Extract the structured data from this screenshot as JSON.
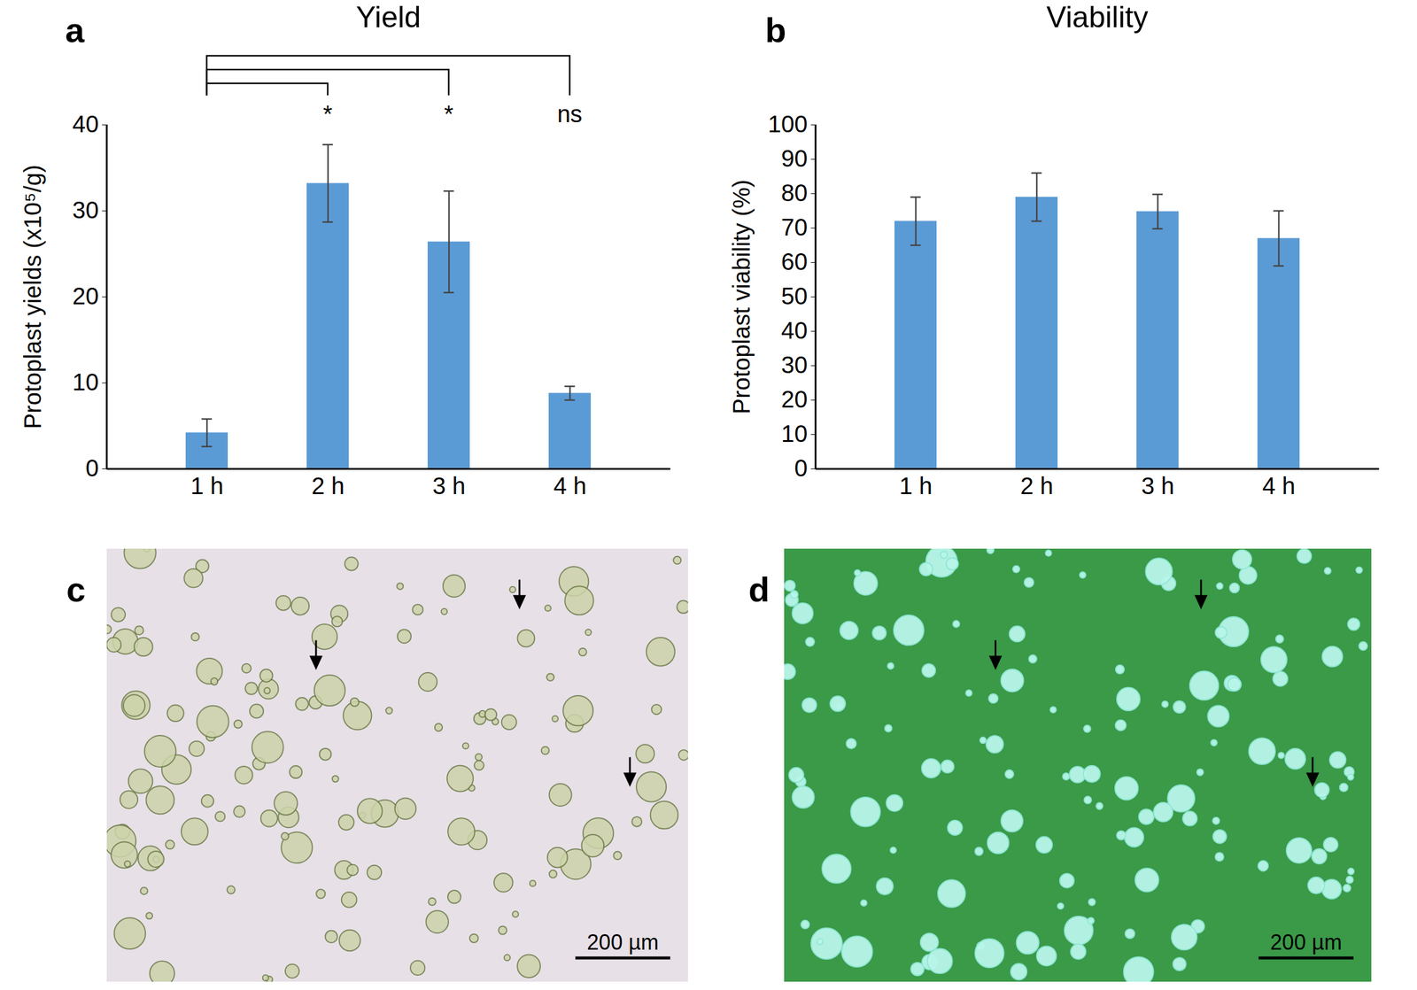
{
  "chart_data": [
    {
      "panel": "a",
      "type": "bar",
      "title": "Yield",
      "categories": [
        "1 h",
        "2 h",
        "3 h",
        "4 h"
      ],
      "values": [
        4.2,
        33.2,
        26.4,
        8.8
      ],
      "errors": [
        1.6,
        4.5,
        5.9,
        0.8
      ],
      "significance": [
        null,
        "*",
        "*",
        "ns"
      ],
      "y_label": "Protoplast yields (x10⁵/g)",
      "ylim": [
        0,
        40
      ],
      "yticks": [
        0,
        10,
        20,
        30,
        40
      ],
      "color": "#5b9bd5",
      "grid": false
    },
    {
      "panel": "b",
      "type": "bar",
      "title": "Viability",
      "categories": [
        "1 h",
        "2 h",
        "3 h",
        "4 h"
      ],
      "values": [
        72,
        79,
        74.8,
        67
      ],
      "errors": [
        7,
        7,
        5,
        8
      ],
      "y_label": "Protoplast viability (%)",
      "ylim": [
        0,
        100
      ],
      "yticks": [
        0,
        10,
        20,
        30,
        40,
        50,
        60,
        70,
        80,
        90,
        100
      ],
      "color": "#5b9bd5",
      "grid": false
    }
  ],
  "images": [
    {
      "panel": "c",
      "scale_bar": "200 µm"
    },
    {
      "panel": "d",
      "scale_bar": "200 µm"
    }
  ]
}
